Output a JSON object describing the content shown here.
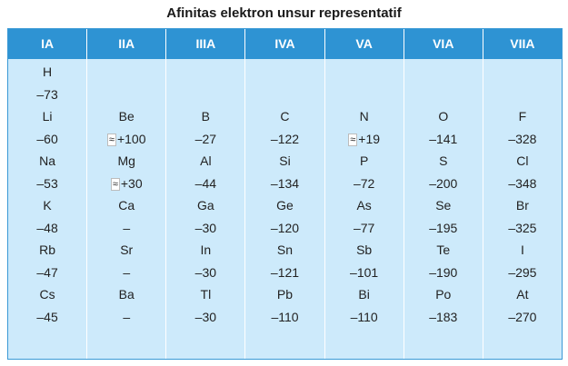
{
  "title": "Afinitas elektron unsur representatif",
  "approx_symbol": "≈",
  "headers": [
    "IA",
    "IIA",
    "IIIA",
    "IVA",
    "VA",
    "VIA",
    "VIIA"
  ],
  "columns": [
    [
      {
        "symbol": "H",
        "value": "–73"
      },
      {
        "symbol": "Li",
        "value": "–60"
      },
      {
        "symbol": "Na",
        "value": "–53"
      },
      {
        "symbol": "K",
        "value": "–48"
      },
      {
        "symbol": "Rb",
        "value": "–47"
      },
      {
        "symbol": "Cs",
        "value": "–45"
      }
    ],
    [
      {
        "symbol": "",
        "value": ""
      },
      {
        "symbol": "Be",
        "value": "+100",
        "approx": true
      },
      {
        "symbol": "Mg",
        "value": "+30",
        "approx": true
      },
      {
        "symbol": "Ca",
        "value": "–"
      },
      {
        "symbol": "Sr",
        "value": "–"
      },
      {
        "symbol": "Ba",
        "value": "–"
      }
    ],
    [
      {
        "symbol": "",
        "value": ""
      },
      {
        "symbol": "B",
        "value": "–27"
      },
      {
        "symbol": "Al",
        "value": "–44"
      },
      {
        "symbol": "Ga",
        "value": "–30"
      },
      {
        "symbol": "In",
        "value": "–30"
      },
      {
        "symbol": "Tl",
        "value": "–30"
      }
    ],
    [
      {
        "symbol": "",
        "value": ""
      },
      {
        "symbol": "C",
        "value": "–122"
      },
      {
        "symbol": "Si",
        "value": "–134"
      },
      {
        "symbol": "Ge",
        "value": "–120"
      },
      {
        "symbol": "Sn",
        "value": "–121"
      },
      {
        "symbol": "Pb",
        "value": "–110"
      }
    ],
    [
      {
        "symbol": "",
        "value": ""
      },
      {
        "symbol": "N",
        "value": "+19",
        "approx": true
      },
      {
        "symbol": "P",
        "value": "–72"
      },
      {
        "symbol": "As",
        "value": "–77"
      },
      {
        "symbol": "Sb",
        "value": "–101"
      },
      {
        "symbol": "Bi",
        "value": "–110"
      }
    ],
    [
      {
        "symbol": "",
        "value": ""
      },
      {
        "symbol": "O",
        "value": "–141"
      },
      {
        "symbol": "S",
        "value": "–200"
      },
      {
        "symbol": "Se",
        "value": "–195"
      },
      {
        "symbol": "Te",
        "value": "–190"
      },
      {
        "symbol": "Po",
        "value": "–183"
      }
    ],
    [
      {
        "symbol": "",
        "value": ""
      },
      {
        "symbol": "F",
        "value": "–328"
      },
      {
        "symbol": "Cl",
        "value": "–348"
      },
      {
        "symbol": "Br",
        "value": "–325"
      },
      {
        "symbol": "I",
        "value": "–295"
      },
      {
        "symbol": "At",
        "value": "–270"
      }
    ]
  ],
  "colors": {
    "header_bg": "#2e93d3",
    "body_bg": "#cdeafb",
    "header_text": "#ffffff"
  }
}
